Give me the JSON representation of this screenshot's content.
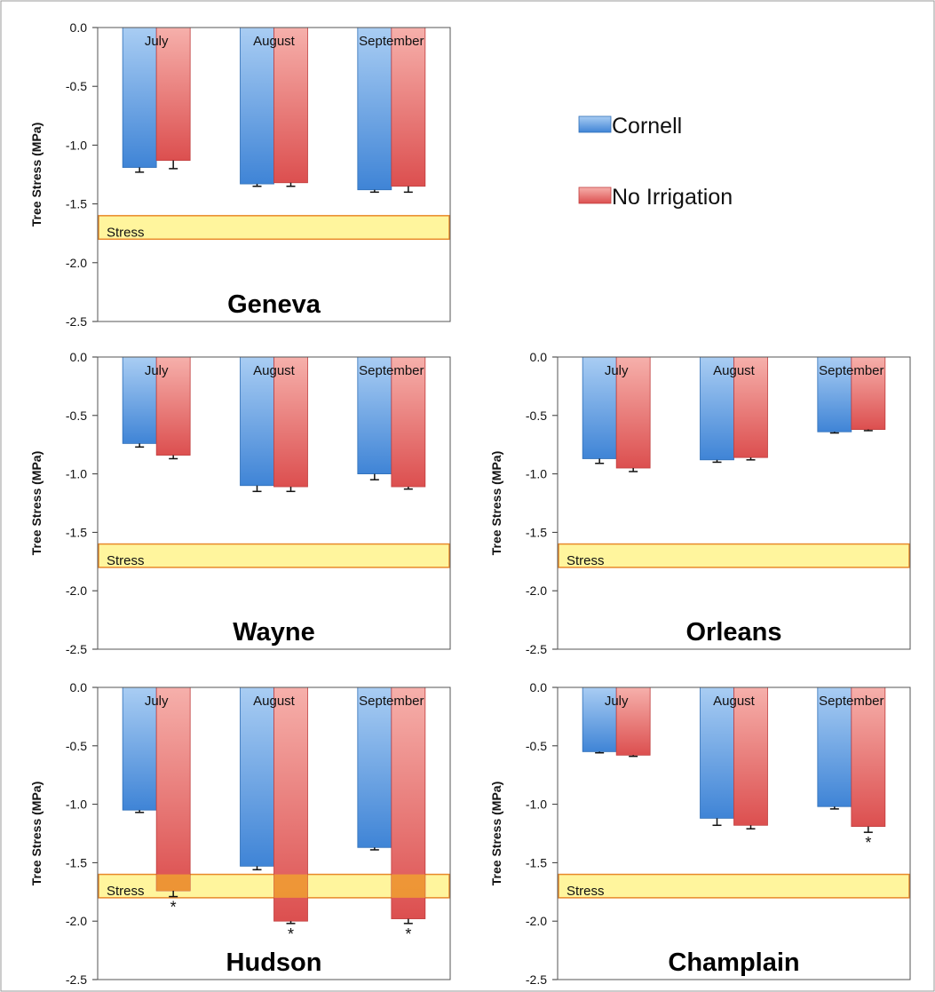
{
  "legend": {
    "items": [
      {
        "name": "Cornell",
        "color": "#4a90d9"
      },
      {
        "name": "No Irrigation",
        "color": "#e05a5a"
      }
    ],
    "placement": "top-right"
  },
  "colors": {
    "cornell": "#4a90d9",
    "no_irrigation": "#e05a5a",
    "stress_band": "#fff59d",
    "stress_band_border": "#e8892a",
    "overlap": "#f0a030"
  },
  "chart_data": [
    {
      "type": "bar",
      "title": "Geneva",
      "ylabel": "Tree Stress (MPa)",
      "categories": [
        "July",
        "August",
        "September"
      ],
      "ylim": [
        -2.5,
        0
      ],
      "yticks": [
        "0.0",
        "-0.5",
        "-1.0",
        "-1.5",
        "-2.0",
        "-2.5"
      ],
      "series": [
        {
          "name": "Cornell",
          "values": [
            -1.19,
            -1.33,
            -1.38
          ],
          "errors": [
            0.04,
            0.02,
            0.02
          ]
        },
        {
          "name": "No Irrigation",
          "values": [
            -1.13,
            -1.32,
            -1.35
          ],
          "errors": [
            0.07,
            0.03,
            0.05
          ]
        }
      ],
      "stress_band": {
        "label": "Stress",
        "range": [
          -1.8,
          -1.6
        ]
      },
      "significance": []
    },
    {
      "type": "bar",
      "title": "Wayne",
      "ylabel": "Tree Stress (MPa)",
      "categories": [
        "July",
        "August",
        "September"
      ],
      "ylim": [
        -2.5,
        0
      ],
      "yticks": [
        "0.0",
        "-0.5",
        "-1.0",
        "-1.5",
        "-2.0",
        "-2.5"
      ],
      "series": [
        {
          "name": "Cornell",
          "values": [
            -0.74,
            -1.1,
            -1.0
          ],
          "errors": [
            0.03,
            0.05,
            0.05
          ]
        },
        {
          "name": "No Irrigation",
          "values": [
            -0.84,
            -1.11,
            -1.11
          ],
          "errors": [
            0.03,
            0.04,
            0.02
          ]
        }
      ],
      "stress_band": {
        "label": "Stress",
        "range": [
          -1.8,
          -1.6
        ]
      },
      "significance": []
    },
    {
      "type": "bar",
      "title": "Orleans",
      "ylabel": "Tree Stress (MPa)",
      "categories": [
        "July",
        "August",
        "September"
      ],
      "ylim": [
        -2.5,
        0
      ],
      "yticks": [
        "0.0",
        "-0.5",
        "-1.0",
        "-1.5",
        "-2.0",
        "-2.5"
      ],
      "series": [
        {
          "name": "Cornell",
          "values": [
            -0.87,
            -0.88,
            -0.64
          ],
          "errors": [
            0.04,
            0.02,
            0.01
          ]
        },
        {
          "name": "No Irrigation",
          "values": [
            -0.95,
            -0.86,
            -0.62
          ],
          "errors": [
            0.03,
            0.02,
            0.01
          ]
        }
      ],
      "stress_band": {
        "label": "Stress",
        "range": [
          -1.8,
          -1.6
        ]
      },
      "significance": []
    },
    {
      "type": "bar",
      "title": "Hudson",
      "ylabel": "Tree Stress (MPa)",
      "categories": [
        "July",
        "August",
        "September"
      ],
      "ylim": [
        -2.5,
        0
      ],
      "yticks": [
        "0.0",
        "-0.5",
        "-1.0",
        "-1.5",
        "-2.0",
        "-2.5"
      ],
      "series": [
        {
          "name": "Cornell",
          "values": [
            -1.05,
            -1.53,
            -1.37
          ],
          "errors": [
            0.02,
            0.03,
            0.02
          ]
        },
        {
          "name": "No Irrigation",
          "values": [
            -1.74,
            -2.0,
            -1.98
          ],
          "errors": [
            0.05,
            0.02,
            0.04
          ]
        }
      ],
      "stress_band": {
        "label": "Stress",
        "range": [
          -1.8,
          -1.6
        ]
      },
      "significance": [
        "*",
        "*",
        "*"
      ]
    },
    {
      "type": "bar",
      "title": "Champlain",
      "ylabel": "Tree Stress (MPa)",
      "categories": [
        "July",
        "August",
        "September"
      ],
      "ylim": [
        -2.5,
        0
      ],
      "yticks": [
        "0.0",
        "-0.5",
        "-1.0",
        "-1.5",
        "-2.0",
        "-2.5"
      ],
      "series": [
        {
          "name": "Cornell",
          "values": [
            -0.55,
            -1.12,
            -1.02
          ],
          "errors": [
            0.01,
            0.06,
            0.02
          ]
        },
        {
          "name": "No Irrigation",
          "values": [
            -0.58,
            -1.18,
            -1.19
          ],
          "errors": [
            0.01,
            0.03,
            0.05
          ]
        }
      ],
      "stress_band": {
        "label": "Stress",
        "range": [
          -1.8,
          -1.6
        ]
      },
      "significance": [
        "",
        "",
        "*"
      ]
    }
  ]
}
